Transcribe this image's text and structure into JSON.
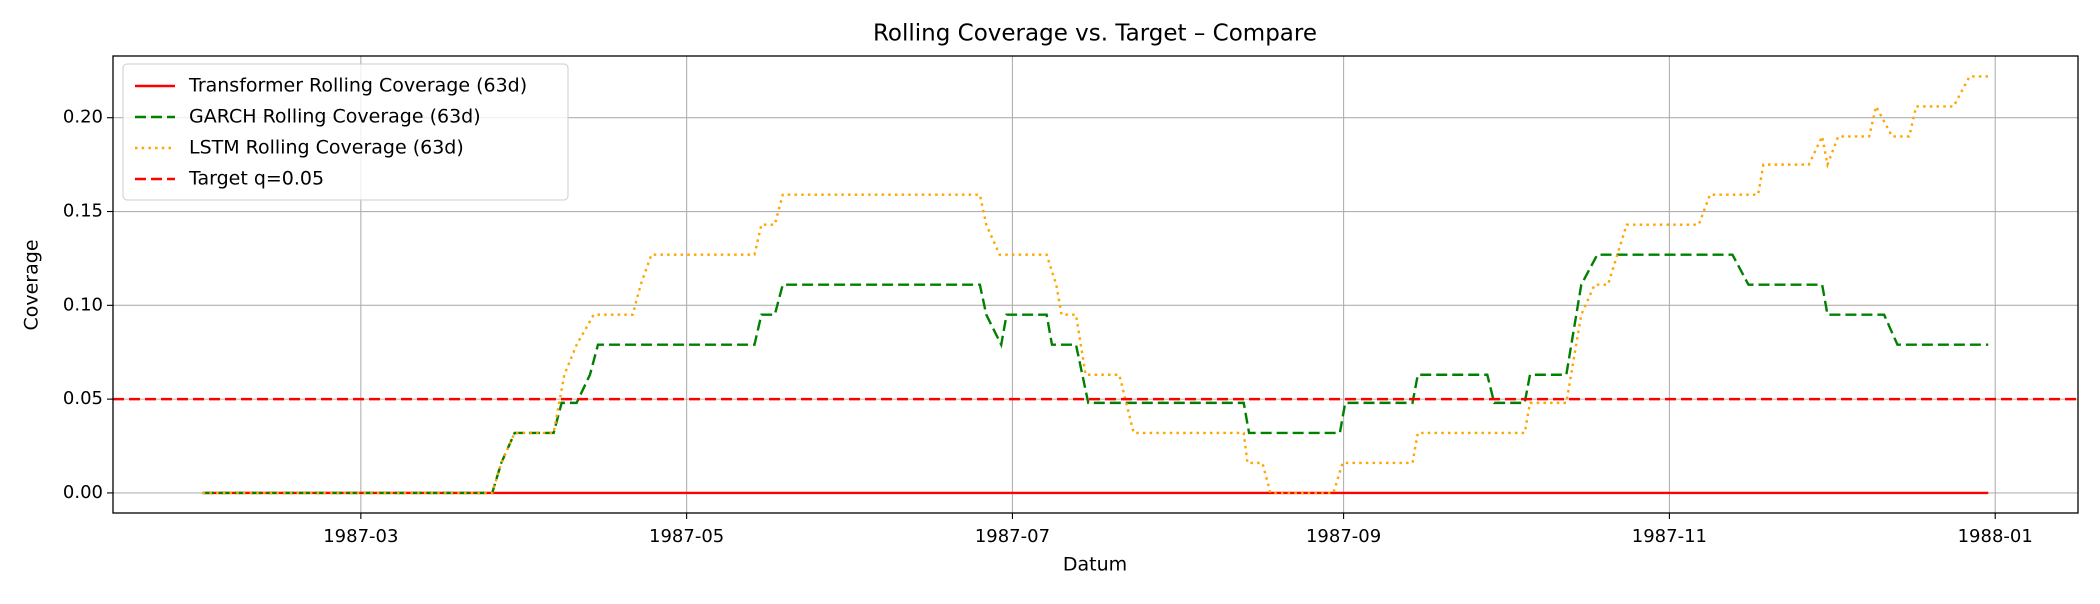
{
  "chart_data": {
    "type": "line",
    "title": "Rolling Coverage vs. Target – Compare",
    "x_label": "Datum",
    "y_label": "Coverage",
    "xlim": [
      12.6,
      380.5
    ],
    "ylim": [
      -0.0107,
      0.2329
    ],
    "xticks": [
      {
        "value": 59,
        "label": "1987-03"
      },
      {
        "value": 120,
        "label": "1987-05"
      },
      {
        "value": 181,
        "label": "1987-07"
      },
      {
        "value": 243,
        "label": "1987-09"
      },
      {
        "value": 304,
        "label": "1987-11"
      },
      {
        "value": 365,
        "label": "1988-01"
      }
    ],
    "yticks": [
      {
        "value": 0,
        "label": "0.00"
      },
      0.05,
      {
        "value": 0.1,
        "label": "0.10"
      },
      0.15,
      {
        "value": 0.2,
        "label": "0.20"
      }
    ],
    "grid": true,
    "legend": "upper left",
    "series": [
      {
        "name": "Transformer Rolling Coverage (63d)",
        "color": "#ff0000",
        "dash": "solid",
        "x": [
          29.4,
          363.7
        ],
        "values": [
          0,
          0
        ]
      },
      {
        "name": "GARCH Rolling Coverage (63d)",
        "color": "#008000",
        "dash": "dashed",
        "x": [
          29.4,
          83.6,
          85.3,
          87.8,
          95.1,
          96.6,
          99.4,
          101.9,
          103.4,
          132.7,
          134.0,
          136.5,
          138.0,
          174.9,
          176.1,
          178.9,
          179.9,
          187.4,
          188.4,
          192.9,
          195.2,
          224.3,
          225.3,
          242.3,
          243.3,
          255.9,
          256.9,
          269.9,
          271.2,
          276.9,
          277.9,
          284.7,
          287.5,
          290.5,
          315.8,
          318.8,
          332.6,
          333.6,
          344.2,
          346.7,
          363.7
        ],
        "values": [
          0,
          0,
          0.016,
          0.032,
          0.032,
          0.048,
          0.048,
          0.063,
          0.079,
          0.079,
          0.095,
          0.095,
          0.111,
          0.111,
          0.095,
          0.079,
          0.095,
          0.095,
          0.079,
          0.079,
          0.048,
          0.048,
          0.032,
          0.032,
          0.048,
          0.048,
          0.063,
          0.063,
          0.048,
          0.048,
          0.063,
          0.063,
          0.111,
          0.127,
          0.127,
          0.111,
          0.111,
          0.095,
          0.095,
          0.079,
          0.079
        ]
      },
      {
        "name": "LSTM Rolling Coverage (63d)",
        "color": "#ffa500",
        "dash": "dotted",
        "x": [
          29.4,
          83.6,
          85.3,
          87.8,
          95.1,
          97.1,
          99.4,
          102.6,
          109.9,
          111.4,
          113.4,
          132.7,
          134.0,
          136.5,
          138.0,
          174.9,
          176.1,
          178.6,
          187.4,
          189.2,
          190.2,
          192.9,
          194.7,
          201.0,
          203.7,
          224.3,
          225.0,
          227.8,
          229.3,
          241.1,
          242.8,
          255.9,
          256.9,
          276.9,
          277.9,
          284.7,
          287.5,
          290.0,
          292.5,
          296.0,
          309.5,
          311.6,
          320.6,
          321.6,
          330.1,
          332.6,
          333.6,
          335.6,
          341.4,
          342.7,
          345.7,
          348.9,
          350.2,
          357.2,
          360.2,
          363.7
        ],
        "values": [
          0,
          0,
          0.016,
          0.032,
          0.032,
          0.063,
          0.079,
          0.095,
          0.095,
          0.111,
          0.127,
          0.127,
          0.143,
          0.143,
          0.159,
          0.159,
          0.143,
          0.127,
          0.127,
          0.111,
          0.095,
          0.095,
          0.063,
          0.063,
          0.032,
          0.032,
          0.016,
          0.016,
          0,
          0,
          0.016,
          0.016,
          0.032,
          0.032,
          0.048,
          0.048,
          0.095,
          0.111,
          0.111,
          0.143,
          0.143,
          0.159,
          0.159,
          0.175,
          0.175,
          0.19,
          0.175,
          0.19,
          0.19,
          0.206,
          0.19,
          0.19,
          0.206,
          0.206,
          0.222,
          0.222
        ]
      }
    ],
    "target": {
      "name": "Target q=0.05",
      "color": "#ff0000",
      "dash": "dashed",
      "value": 0.05
    }
  }
}
